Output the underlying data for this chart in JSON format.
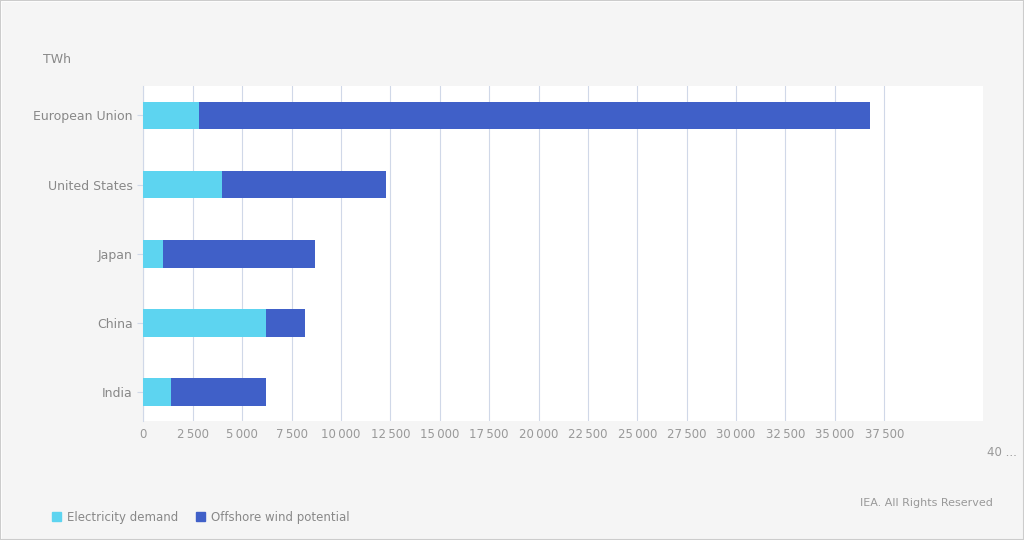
{
  "categories": [
    "European Union",
    "United States",
    "Japan",
    "China",
    "India"
  ],
  "electricity_demand": [
    2800,
    4000,
    1000,
    6200,
    1400
  ],
  "offshore_wind_potential": [
    34000,
    8300,
    7700,
    2000,
    4800
  ],
  "color_demand": "#5DD4F0",
  "color_offshore": "#4060C8",
  "background_color": "#F5F5F5",
  "plot_bg_color": "#FFFFFF",
  "grid_color": "#D0D8E8",
  "ylabel_unit": "TWh",
  "xlim": [
    0,
    42500
  ],
  "xticks": [
    0,
    2500,
    5000,
    7500,
    10000,
    12500,
    15000,
    17500,
    20000,
    22500,
    25000,
    27500,
    30000,
    32500,
    35000,
    37500
  ],
  "legend_demand": "Electricity demand",
  "legend_offshore": "Offshore wind potential",
  "credit": "IEA. All Rights Reserved",
  "tick_label_color": "#999999",
  "label_color": "#888888",
  "bar_height": 0.4
}
